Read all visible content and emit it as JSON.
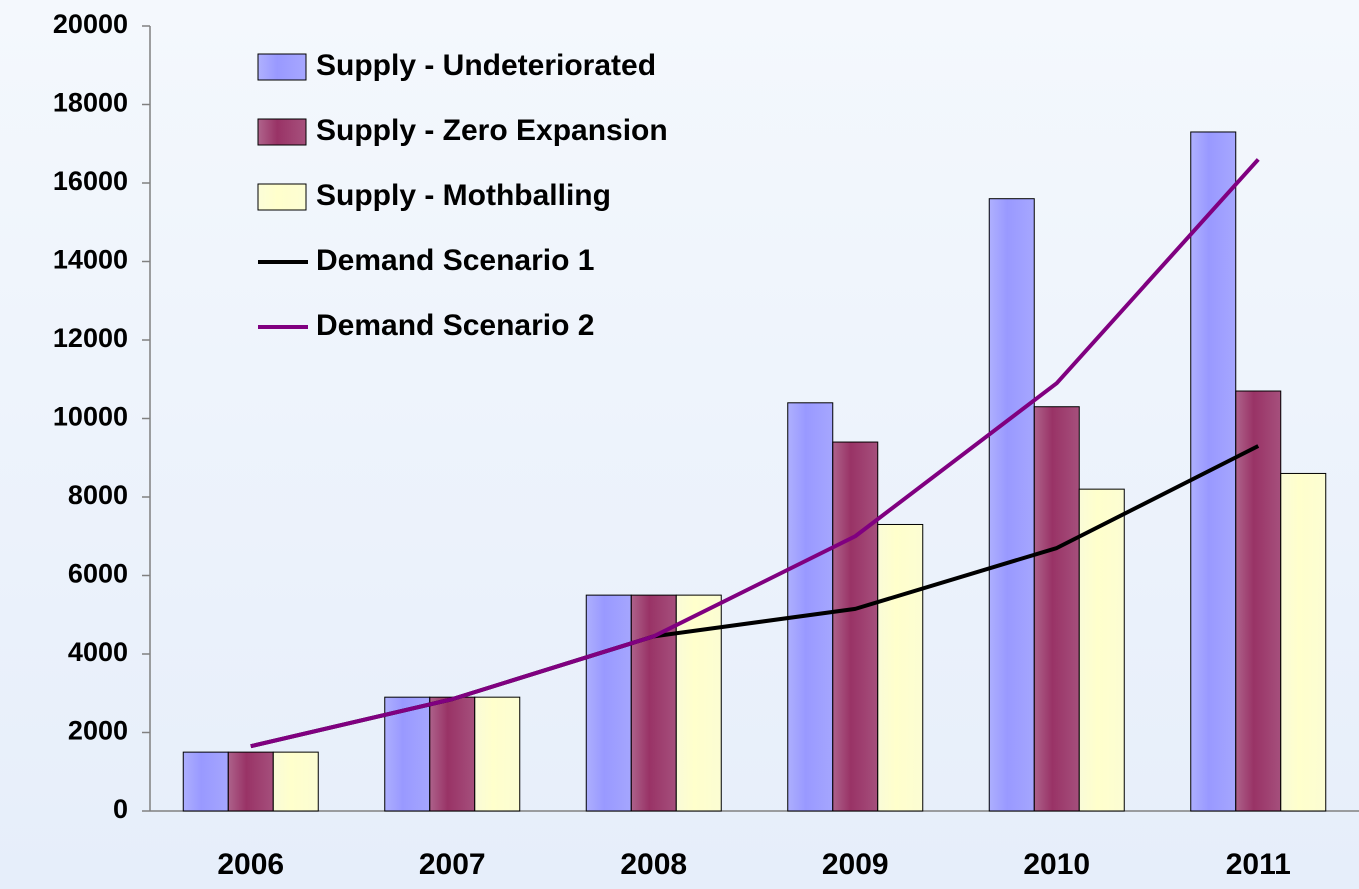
{
  "chart_data": {
    "type": "bar",
    "categories": [
      "2006",
      "2007",
      "2008",
      "2009",
      "2010",
      "2011"
    ],
    "series": [
      {
        "name": "Supply - Undeteriorated",
        "type": "bar",
        "color": "#9999ff",
        "values": [
          1500,
          2900,
          5500,
          10400,
          15600,
          17300
        ]
      },
      {
        "name": "Supply - Zero Expansion",
        "type": "bar",
        "color": "#993366",
        "values": [
          1500,
          2900,
          5500,
          9400,
          10300,
          10700
        ]
      },
      {
        "name": "Supply - Mothballing",
        "type": "bar",
        "color": "#ffffcc",
        "values": [
          1500,
          2900,
          5500,
          7300,
          8200,
          8600
        ]
      },
      {
        "name": "Demand Scenario 1",
        "type": "line",
        "color": "#000000",
        "values": [
          1650,
          2850,
          4450,
          5150,
          6700,
          9300
        ]
      },
      {
        "name": "Demand Scenario 2",
        "type": "line",
        "color": "#800080",
        "values": [
          1650,
          2850,
          4450,
          7000,
          10900,
          16600
        ]
      }
    ],
    "ylim": [
      0,
      20000
    ],
    "yticks": [
      0,
      2000,
      4000,
      6000,
      8000,
      10000,
      12000,
      14000,
      16000,
      18000,
      20000
    ],
    "grid": false,
    "legend": "upper left"
  }
}
